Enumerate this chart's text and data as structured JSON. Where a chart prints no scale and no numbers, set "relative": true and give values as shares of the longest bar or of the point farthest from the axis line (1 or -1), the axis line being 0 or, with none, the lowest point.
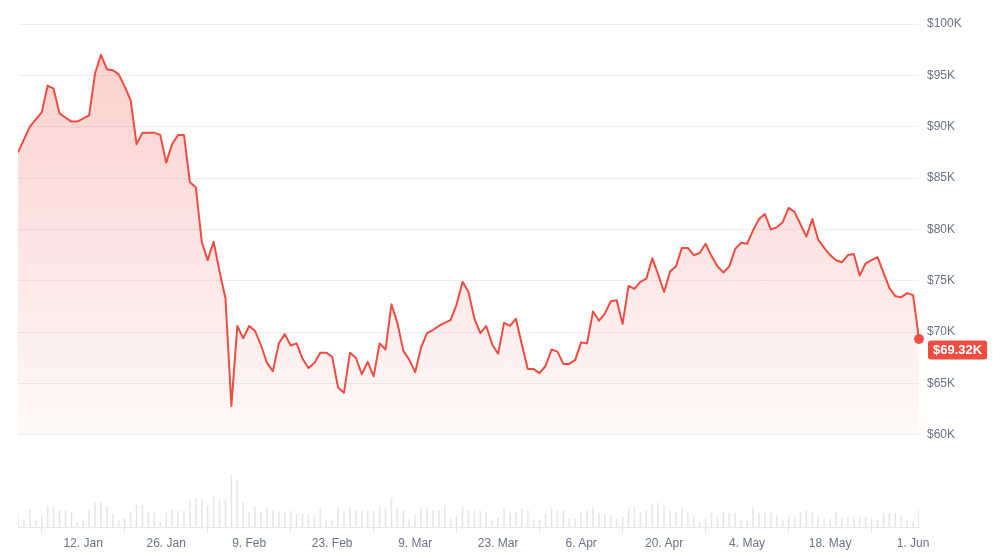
{
  "chart_data": [
    {
      "type": "area",
      "color": "#ef4d41",
      "x": [
        "--01-01",
        "--01-03",
        "--01-05",
        "--01-06",
        "--01-07",
        "--01-08",
        "--01-09",
        "--01-10",
        "--01-11",
        "--01-13",
        "--01-14",
        "--01-15",
        "--01-16",
        "--01-17",
        "--01-18",
        "--01-19",
        "--01-20",
        "--01-21",
        "--01-22",
        "--01-23",
        "--01-24",
        "--01-25",
        "--01-26",
        "--01-27",
        "--01-28",
        "--01-29",
        "--01-30",
        "--01-31",
        "--02-01",
        "--02-02",
        "--02-03",
        "--02-04",
        "--02-05",
        "--02-06",
        "--02-07",
        "--02-08",
        "--02-09",
        "--02-10",
        "--02-11",
        "--02-12",
        "--02-13",
        "--02-14",
        "--02-15",
        "--02-16",
        "--02-17",
        "--02-18",
        "--02-19",
        "--02-20",
        "--02-21",
        "--02-22",
        "--02-23",
        "--02-24",
        "--02-25",
        "--02-26",
        "--02-27",
        "--02-28",
        "--03-01",
        "--03-02",
        "--03-03",
        "--03-04",
        "--03-05",
        "--03-06",
        "--03-07",
        "--03-08",
        "--03-09",
        "--03-10",
        "--03-11",
        "--03-12",
        "--03-13",
        "--03-14",
        "--03-15",
        "--03-16",
        "--03-17",
        "--03-18",
        "--03-19",
        "--03-20",
        "--03-21",
        "--03-22",
        "--03-23",
        "--03-24",
        "--03-25",
        "--03-26",
        "--03-27",
        "--03-28",
        "--03-29",
        "--03-30",
        "--03-31",
        "--04-01",
        "--04-02",
        "--04-03",
        "--04-04",
        "--04-05",
        "--04-06",
        "--04-07",
        "--04-08",
        "--04-09",
        "--04-10",
        "--04-11",
        "--04-12",
        "--04-13",
        "--04-14",
        "--04-15",
        "--04-16",
        "--04-17",
        "--04-18",
        "--04-19",
        "--04-20",
        "--04-21",
        "--04-22",
        "--04-23",
        "--04-24",
        "--04-25",
        "--04-26",
        "--04-27",
        "--04-28",
        "--04-29",
        "--04-30",
        "--05-01",
        "--05-02",
        "--05-03",
        "--05-04",
        "--05-05",
        "--05-06",
        "--05-07",
        "--05-08",
        "--05-09",
        "--05-10",
        "--05-11",
        "--05-12",
        "--05-13",
        "--05-14",
        "--05-15",
        "--05-16",
        "--05-17",
        "--05-18",
        "--05-19",
        "--05-20",
        "--05-21",
        "--05-22",
        "--05-23",
        "--05-24",
        "--05-25",
        "--05-26",
        "--05-27",
        "--05-28",
        "--05-29",
        "--05-30",
        "--05-31",
        "--06-01",
        "--06-02"
      ],
      "values": [
        87.5,
        90.0,
        91.4,
        94.0,
        93.7,
        91.3,
        90.9,
        90.5,
        90.5,
        91.1,
        95.2,
        97.0,
        95.6,
        95.5,
        95.1,
        93.9,
        92.6,
        88.3,
        89.4,
        89.4,
        89.4,
        89.2,
        86.5,
        88.3,
        89.2,
        89.2,
        84.6,
        84.1,
        78.8,
        77.0,
        78.8,
        75.9,
        73.3,
        62.8,
        70.6,
        69.4,
        70.6,
        70.1,
        68.7,
        67.0,
        66.2,
        68.9,
        69.8,
        68.7,
        68.9,
        67.4,
        66.5,
        67.0,
        68.0,
        68.0,
        67.6,
        64.6,
        64.1,
        68.0,
        67.5,
        65.9,
        67.1,
        65.7,
        68.9,
        68.3,
        72.7,
        70.9,
        68.2,
        67.3,
        66.1,
        68.5,
        69.9,
        70.2,
        70.6,
        70.9,
        71.2,
        72.7,
        74.9,
        73.9,
        71.3,
        69.9,
        70.6,
        68.8,
        67.9,
        70.9,
        70.6,
        71.3,
        68.8,
        66.4,
        66.4,
        66.0,
        66.7,
        68.3,
        68.1,
        66.9,
        66.9,
        67.3,
        69.0,
        68.9,
        72.0,
        71.1,
        71.8,
        73.0,
        73.1,
        70.8,
        74.5,
        74.2,
        74.9,
        75.2,
        77.2,
        75.6,
        73.9,
        75.9,
        76.4,
        78.2,
        78.2,
        77.5,
        77.7,
        78.6,
        77.4,
        76.4,
        75.8,
        76.4,
        78.1,
        78.7,
        78.6,
        79.9,
        81.0,
        81.5,
        80.0,
        80.2,
        80.7,
        82.1,
        81.7,
        80.5,
        79.3,
        81.0,
        79.0,
        78.2,
        77.5,
        77.0,
        76.8,
        77.5,
        77.6,
        75.5,
        76.7,
        77.0,
        77.3,
        75.8,
        74.3,
        73.5,
        73.4,
        73.8,
        73.6,
        69.32
      ],
      "xlim": [
        "--01-01",
        "--06-02"
      ],
      "ylim": [
        60,
        100
      ],
      "yticks": [
        {
          "value": 60,
          "label": "$60K"
        },
        {
          "value": 65,
          "label": "$65K"
        },
        {
          "value": 70,
          "label": "$70K"
        },
        {
          "value": 75,
          "label": "$75K"
        },
        {
          "value": 80,
          "label": "$80K"
        },
        {
          "value": 85,
          "label": "$85K"
        },
        {
          "value": 90,
          "label": "$90K"
        },
        {
          "value": 95,
          "label": "$95K"
        },
        {
          "value": 100,
          "label": "$100K"
        }
      ],
      "grid": "y",
      "tick_labels": "y",
      "annotations": [
        {
          "text": "$69.32K",
          "x": "--06-02",
          "y": 69.32
        }
      ]
    },
    {
      "type": "bar",
      "relative": true,
      "color": "#e6e8ec",
      "grid": false,
      "tick_labels": "x",
      "x": [
        "--01-01",
        "--01-02",
        "--01-03",
        "--01-04",
        "--01-05",
        "--01-06",
        "--01-07",
        "--01-08",
        "--01-09",
        "--01-10",
        "--01-11",
        "--01-12",
        "--01-13",
        "--01-14",
        "--01-15",
        "--01-16",
        "--01-17",
        "--01-18",
        "--01-19",
        "--01-20",
        "--01-21",
        "--01-22",
        "--01-23",
        "--01-24",
        "--01-25",
        "--01-26",
        "--01-27",
        "--01-28",
        "--01-29",
        "--01-30",
        "--01-31",
        "--02-01",
        "--02-02",
        "--02-03",
        "--02-04",
        "--02-05",
        "--02-06",
        "--02-07",
        "--02-08",
        "--02-09",
        "--02-10",
        "--02-11",
        "--02-12",
        "--02-13",
        "--02-14",
        "--02-15",
        "--02-16",
        "--02-17",
        "--02-18",
        "--02-19",
        "--02-20",
        "--02-21",
        "--02-22",
        "--02-23",
        "--02-24",
        "--02-25",
        "--02-26",
        "--02-27",
        "--02-28",
        "--03-01",
        "--03-02",
        "--03-03",
        "--03-04",
        "--03-05",
        "--03-06",
        "--03-07",
        "--03-08",
        "--03-09",
        "--03-10",
        "--03-11",
        "--03-12",
        "--03-13",
        "--03-14",
        "--03-15",
        "--03-16",
        "--03-17",
        "--03-18",
        "--03-19",
        "--03-20",
        "--03-21",
        "--03-22",
        "--03-23",
        "--03-24",
        "--03-25",
        "--03-26",
        "--03-27",
        "--03-28",
        "--03-29",
        "--03-30",
        "--03-31",
        "--04-01",
        "--04-02",
        "--04-03",
        "--04-04",
        "--04-05",
        "--04-06",
        "--04-07",
        "--04-08",
        "--04-09",
        "--04-10",
        "--04-11",
        "--04-12",
        "--04-13",
        "--04-14",
        "--04-15",
        "--04-16",
        "--04-17",
        "--04-18",
        "--04-19",
        "--04-20",
        "--04-21",
        "--04-22",
        "--04-23",
        "--04-24",
        "--04-25",
        "--04-26",
        "--04-27",
        "--04-28",
        "--04-29",
        "--04-30",
        "--05-01",
        "--05-02",
        "--05-03",
        "--05-04",
        "--05-05",
        "--05-06",
        "--05-07",
        "--05-08",
        "--05-09",
        "--05-10",
        "--05-11",
        "--05-12",
        "--05-13",
        "--05-14",
        "--05-15",
        "--05-16",
        "--05-17",
        "--05-18",
        "--05-19",
        "--05-20",
        "--05-21",
        "--05-22",
        "--05-23",
        "--05-24",
        "--05-25",
        "--05-26",
        "--05-27",
        "--05-28",
        "--05-29",
        "--05-30",
        "--05-31",
        "--06-01",
        "--06-02"
      ],
      "values": [
        0.25,
        0.14,
        0.34,
        0.15,
        0.22,
        0.41,
        0.41,
        0.33,
        0.32,
        0.29,
        0.09,
        0.13,
        0.33,
        0.47,
        0.48,
        0.41,
        0.25,
        0.13,
        0.17,
        0.29,
        0.43,
        0.43,
        0.29,
        0.28,
        0.1,
        0.28,
        0.34,
        0.3,
        0.32,
        0.5,
        0.55,
        0.54,
        0.41,
        0.6,
        0.52,
        0.52,
        1,
        0.9,
        0.48,
        0.29,
        0.39,
        0.29,
        0.38,
        0.33,
        0.29,
        0.28,
        0.31,
        0.25,
        0.25,
        0.24,
        0.24,
        0.37,
        0.14,
        0.14,
        0.38,
        0.32,
        0.38,
        0.32,
        0.31,
        0.32,
        0.31,
        0.42,
        0.37,
        0.56,
        0.39,
        0.32,
        0.15,
        0.23,
        0.37,
        0.37,
        0.33,
        0.32,
        0.42,
        0.17,
        0.2,
        0.39,
        0.33,
        0.32,
        0.31,
        0.28,
        0.15,
        0.19,
        0.37,
        0.27,
        0.29,
        0.36,
        0.33,
        0.15,
        0.15,
        0.25,
        0.38,
        0.33,
        0.32,
        0.17,
        0.17,
        0.3,
        0.32,
        0.38,
        0.27,
        0.25,
        0.25,
        0.17,
        0.2,
        0.36,
        0.41,
        0.29,
        0.32,
        0.45,
        0.46,
        0.42,
        0.33,
        0.29,
        0.36,
        0.29,
        0.22,
        0.1,
        0.17,
        0.28,
        0.2,
        0.28,
        0.27,
        0.28,
        0.14,
        0.13,
        0.38,
        0.27,
        0.27,
        0.27,
        0.23,
        0.13,
        0.22,
        0.22,
        0.29,
        0.32,
        0.28,
        0.22,
        0.17,
        0.15,
        0.29,
        0.2,
        0.2,
        0.2,
        0.2,
        0.2,
        0.15,
        0.14,
        0.27,
        0.28,
        0.27,
        0.23,
        0.14,
        0.11,
        0.34
      ],
      "xlim": [
        "--01-01",
        "--06-02"
      ],
      "xticks": [
        {
          "value": "--01-12",
          "label": "12. Jan"
        },
        {
          "value": "--01-26",
          "label": "26. Jan"
        },
        {
          "value": "--02-09",
          "label": "9. Feb"
        },
        {
          "value": "--02-23",
          "label": "23. Feb"
        },
        {
          "value": "--03-09",
          "label": "9. Mar"
        },
        {
          "value": "--03-23",
          "label": "23. Mar"
        },
        {
          "value": "--04-06",
          "label": "6. Apr"
        },
        {
          "value": "--04-20",
          "label": "20. Apr"
        },
        {
          "value": "--05-04",
          "label": "4. May"
        },
        {
          "value": "--05-18",
          "label": "18. May"
        },
        {
          "value": "--06-01",
          "label": "1. Jun"
        }
      ]
    }
  ]
}
